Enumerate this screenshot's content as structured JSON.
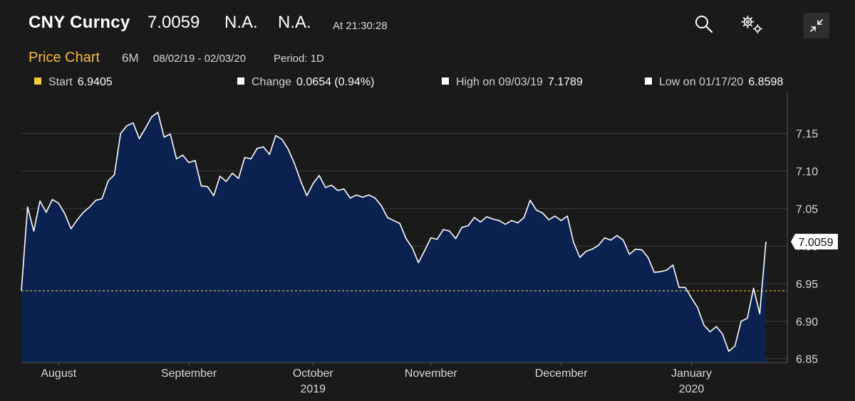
{
  "header": {
    "ticker": "CNY Curncy",
    "last_price": "7.0059",
    "field1": "N.A.",
    "field2": "N.A.",
    "time": "At 21:30:28"
  },
  "icons": {
    "search": "search-icon",
    "settings": "gear-icon",
    "collapse": "collapse-icon"
  },
  "subheader": {
    "title": "Price Chart",
    "range": "6M",
    "dates": "08/02/19 - 02/03/20",
    "period": "Period: 1D"
  },
  "stats": {
    "start_label": "Start",
    "start_value": "6.9405",
    "change_label": "Change",
    "change_value": "0.0654 (0.94%)",
    "high_label": "High on 09/03/19",
    "high_value": "7.1789",
    "low_label": "Low on 01/17/20",
    "low_value": "6.8598"
  },
  "colors": {
    "background": "#1a1a1a",
    "area_fill": "#0b2250",
    "line": "#ffffff",
    "start_marker": "#f5c842",
    "accent": "#f5b942"
  },
  "chart_data": {
    "type": "area",
    "title": "",
    "xlabel": "",
    "ylabel": "",
    "ylim": [
      6.845,
      7.195
    ],
    "yticks": [
      6.85,
      6.9,
      6.95,
      7.0,
      7.05,
      7.1,
      7.15
    ],
    "ytick_labels": [
      "6.85",
      "6.90",
      "6.95",
      "7.00",
      "7.05",
      "7.10",
      "7.15"
    ],
    "xticks": [
      {
        "label": "August",
        "sub": "",
        "index": 6
      },
      {
        "label": "September",
        "sub": "",
        "index": 27
      },
      {
        "label": "October",
        "sub": "2019",
        "index": 47
      },
      {
        "label": "November",
        "sub": "",
        "index": 66
      },
      {
        "label": "December",
        "sub": "",
        "index": 87
      },
      {
        "label": "January",
        "sub": "2020",
        "index": 108
      }
    ],
    "start_reference": 6.9405,
    "last_value_label": "7.0059",
    "grid": true,
    "series": [
      {
        "values": [
          6.9405,
          7.052,
          7.02,
          7.06,
          7.045,
          7.062,
          7.057,
          7.043,
          7.023,
          7.035,
          7.045,
          7.052,
          7.061,
          7.063,
          7.087,
          7.095,
          7.15,
          7.16,
          7.164,
          7.143,
          7.157,
          7.172,
          7.178,
          7.145,
          7.149,
          7.116,
          7.121,
          7.111,
          7.114,
          7.08,
          7.079,
          7.067,
          7.093,
          7.086,
          7.097,
          7.09,
          7.118,
          7.116,
          7.13,
          7.132,
          7.122,
          7.147,
          7.142,
          7.129,
          7.11,
          7.087,
          7.067,
          7.083,
          7.094,
          7.078,
          7.081,
          7.074,
          7.076,
          7.064,
          7.068,
          7.065,
          7.068,
          7.064,
          7.054,
          7.038,
          7.034,
          7.03,
          7.01,
          6.998,
          6.978,
          6.994,
          7.011,
          7.009,
          7.022,
          7.02,
          7.01,
          7.025,
          7.027,
          7.038,
          7.032,
          7.039,
          7.036,
          7.034,
          7.029,
          7.034,
          7.031,
          7.038,
          7.061,
          7.048,
          7.044,
          7.035,
          7.04,
          7.034,
          7.04,
          7.005,
          6.985,
          6.993,
          6.996,
          7.001,
          7.011,
          7.008,
          7.014,
          7.008,
          6.989,
          6.996,
          6.995,
          6.985,
          6.965,
          6.966,
          6.968,
          6.975,
          6.945,
          6.945,
          6.931,
          6.918,
          6.895,
          6.886,
          6.893,
          6.883,
          6.86,
          6.867,
          6.9,
          6.904,
          6.944,
          6.91,
          7.0059
        ]
      }
    ]
  }
}
